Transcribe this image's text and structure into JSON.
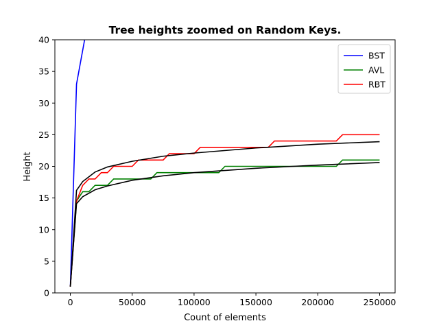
{
  "chart_data": {
    "type": "line",
    "title": "Tree heights zoomed on Random Keys.",
    "xlabel": "Count of elements",
    "ylabel": "Height",
    "xlim": [
      -12500,
      262500
    ],
    "ylim": [
      0,
      40
    ],
    "grid": false,
    "legend_position": "top-right",
    "x_ticks": [
      0,
      50000,
      100000,
      150000,
      200000,
      250000
    ],
    "x_tick_labels": [
      "0",
      "50000",
      "100000",
      "150000",
      "200000",
      "250000"
    ],
    "y_ticks": [
      0,
      5,
      10,
      15,
      20,
      25,
      30,
      35,
      40
    ],
    "y_tick_labels": [
      "0",
      "5",
      "10",
      "15",
      "20",
      "25",
      "30",
      "35",
      "40"
    ],
    "series": [
      {
        "name": "BST",
        "color": "#0000ff",
        "points": [
          [
            0,
            1
          ],
          [
            5000,
            33
          ],
          [
            12000,
            40.5
          ],
          [
            16000,
            46
          ]
        ]
      },
      {
        "name": "AVL",
        "color": "#008000",
        "points": [
          [
            0,
            1
          ],
          [
            5000,
            14.5
          ],
          [
            10000,
            16
          ],
          [
            15000,
            16
          ],
          [
            20000,
            17
          ],
          [
            30000,
            17
          ],
          [
            35000,
            18
          ],
          [
            50000,
            18
          ],
          [
            65000,
            18
          ],
          [
            70000,
            19
          ],
          [
            100000,
            19
          ],
          [
            120000,
            19
          ],
          [
            125000,
            20
          ],
          [
            215000,
            20
          ],
          [
            220000,
            21
          ],
          [
            250000,
            21
          ]
        ]
      },
      {
        "name": "RBT",
        "color": "#ff0000",
        "points": [
          [
            0,
            1
          ],
          [
            5000,
            14.5
          ],
          [
            10000,
            17
          ],
          [
            15000,
            18
          ],
          [
            20000,
            18
          ],
          [
            25000,
            19
          ],
          [
            30000,
            19
          ],
          [
            35000,
            20
          ],
          [
            50000,
            20
          ],
          [
            55000,
            21
          ],
          [
            75000,
            21
          ],
          [
            80000,
            22
          ],
          [
            100000,
            22
          ],
          [
            105000,
            23
          ],
          [
            160000,
            23
          ],
          [
            165000,
            24
          ],
          [
            215000,
            24
          ],
          [
            220000,
            25
          ],
          [
            250000,
            25
          ]
        ]
      }
    ],
    "fit_curves": [
      {
        "color": "#000000",
        "points": [
          [
            0,
            1
          ],
          [
            5000,
            16.2
          ],
          [
            10000,
            17.6
          ],
          [
            20000,
            19.1
          ],
          [
            30000,
            19.9
          ],
          [
            50000,
            20.8
          ],
          [
            75000,
            21.6
          ],
          [
            100000,
            22.1
          ],
          [
            150000,
            22.9
          ],
          [
            200000,
            23.5
          ],
          [
            250000,
            23.9
          ]
        ]
      },
      {
        "color": "#000000",
        "points": [
          [
            0,
            1
          ],
          [
            5000,
            14.1
          ],
          [
            10000,
            15.2
          ],
          [
            20000,
            16.3
          ],
          [
            30000,
            16.9
          ],
          [
            50000,
            17.8
          ],
          [
            75000,
            18.5
          ],
          [
            100000,
            19.0
          ],
          [
            150000,
            19.7
          ],
          [
            200000,
            20.2
          ],
          [
            250000,
            20.6
          ]
        ]
      }
    ]
  }
}
